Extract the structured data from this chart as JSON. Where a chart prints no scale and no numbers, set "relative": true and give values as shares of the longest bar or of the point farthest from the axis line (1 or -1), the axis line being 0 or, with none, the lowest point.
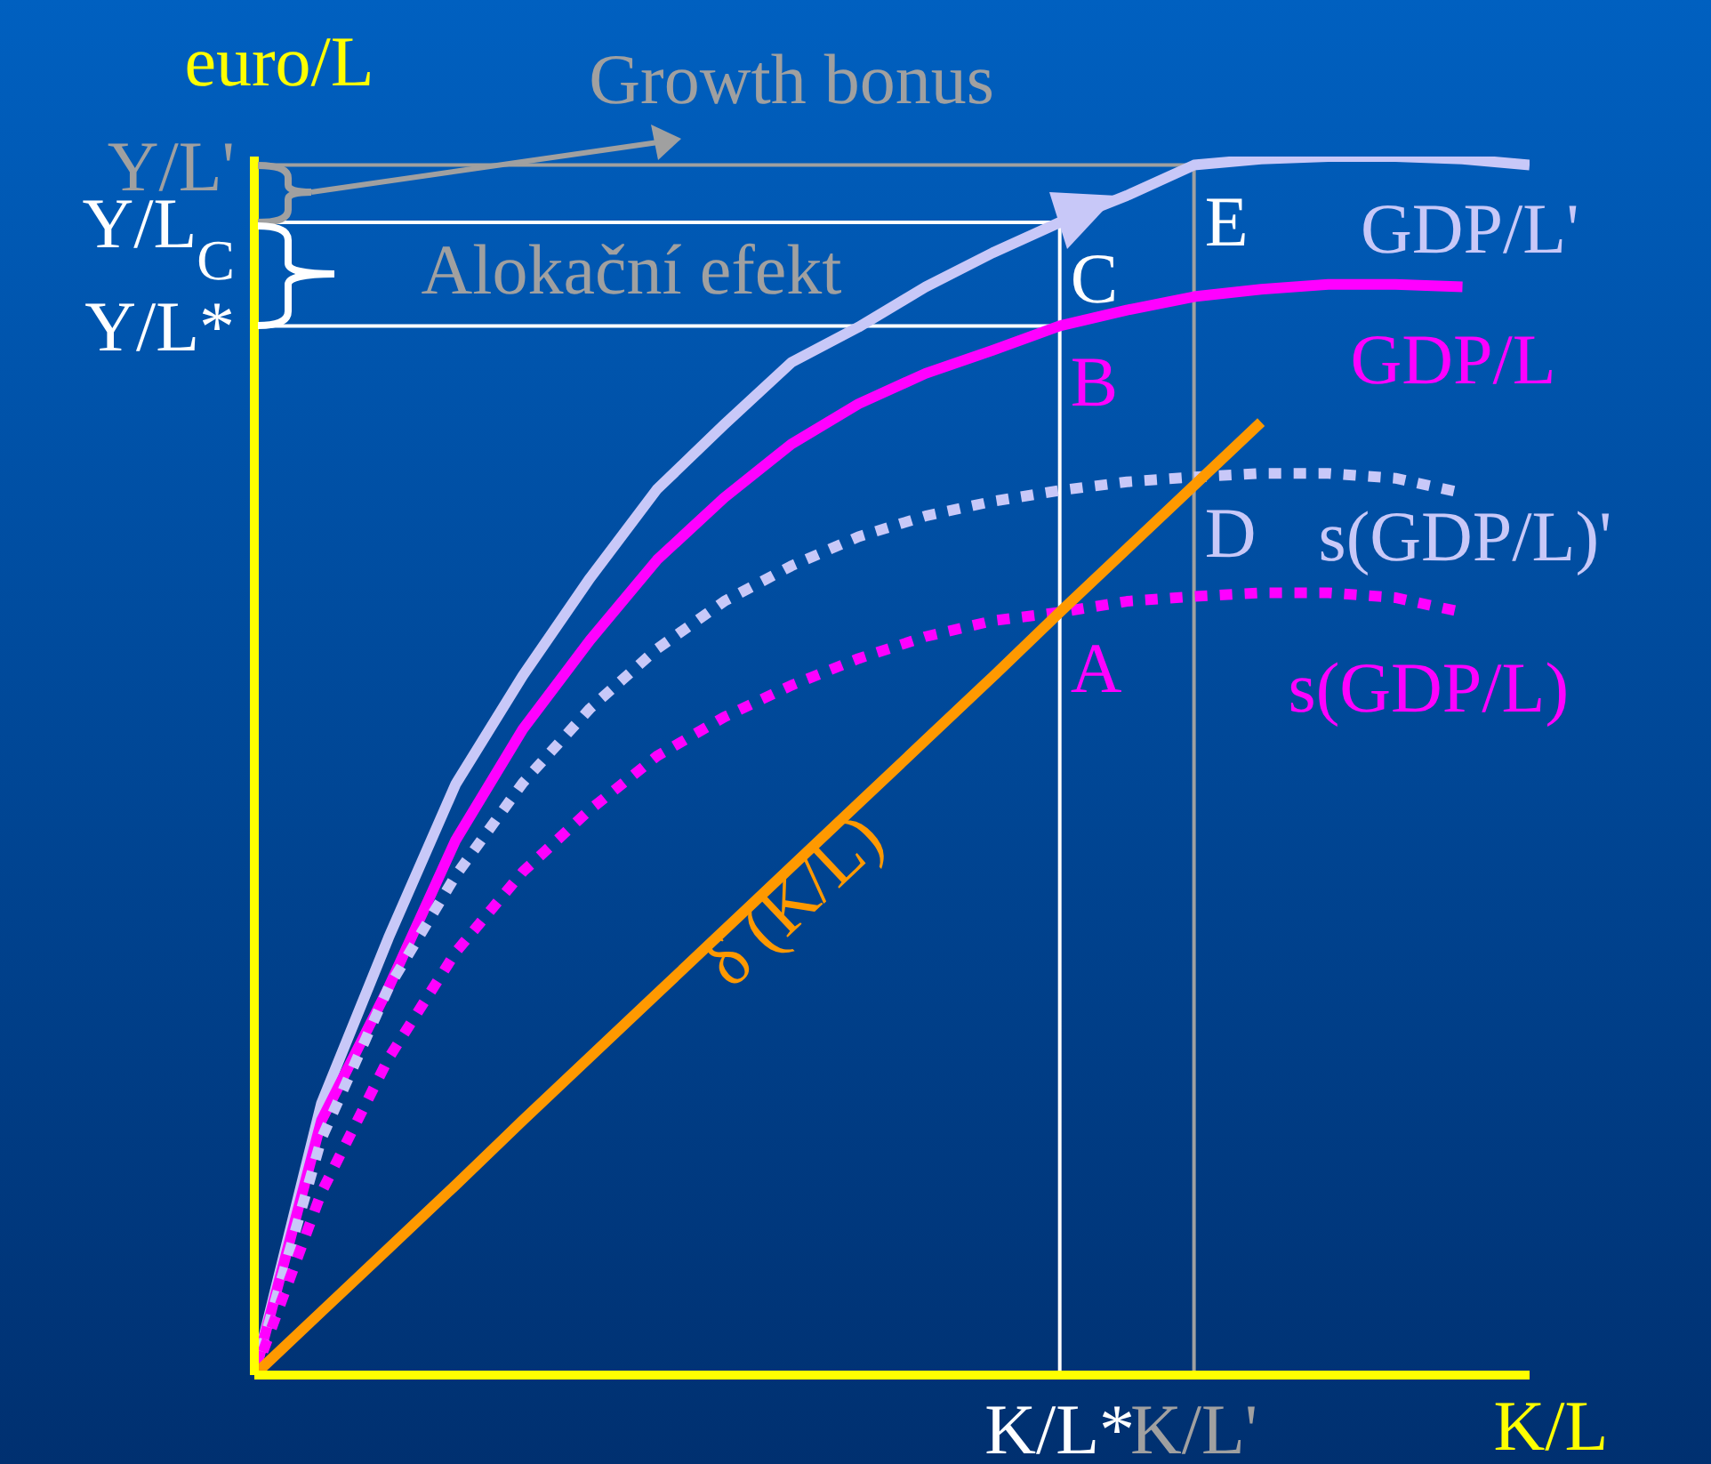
{
  "chart_data": {
    "type": "line",
    "relative": true,
    "xlabel": "K/L",
    "ylabel": "euro/L",
    "legend": false,
    "marker": "none",
    "categories": [
      null,
      null,
      null,
      null,
      null,
      null,
      null,
      null,
      null,
      null,
      null,
      null,
      "K/L*",
      null,
      "K/L'",
      null,
      null,
      null,
      null,
      null
    ],
    "series": [
      {
        "name": "GDP/L'",
        "color": "#c8c8f8",
        "line_style": "solid",
        "values": [
          0,
          0.223,
          0.359,
          0.485,
          0.574,
          0.654,
          0.727,
          0.78,
          0.831,
          0.86,
          0.893,
          0.921,
          0.946,
          0.968,
          0.993,
          0.998,
          1,
          1,
          0.998,
          0.993
        ]
      },
      {
        "name": "GDP/L",
        "color": "#ff00ff",
        "line_style": "solid",
        "values": [
          0,
          0.209,
          0.318,
          0.439,
          0.53,
          0.603,
          0.669,
          0.72,
          0.764,
          0.797,
          0.822,
          0.841,
          0.861,
          0.874,
          0.885,
          0.891,
          0.895,
          0.895,
          0.893,
          null
        ]
      },
      {
        "name": "s(GDP/L)'",
        "color": "#c8c8f8",
        "line_style": "dotted",
        "values": [
          0,
          0.194,
          0.318,
          0.41,
          0.486,
          0.547,
          0.596,
          0.635,
          0.664,
          0.688,
          0.705,
          0.717,
          0.726,
          0.733,
          0.737,
          0.74,
          0.74,
          0.736,
          0.724,
          null
        ]
      },
      {
        "name": "s(GDP/L)",
        "color": "#ff00ff",
        "line_style": "dotted",
        "values": [
          0,
          0.15,
          0.26,
          0.347,
          0.413,
          0.464,
          0.508,
          0.54,
          0.566,
          0.588,
          0.606,
          0.619,
          0.626,
          0.635,
          0.639,
          0.642,
          0.642,
          0.638,
          0.626,
          null
        ]
      },
      {
        "name": "δ (K/L)",
        "color": "#ff9900",
        "line_style": "solid",
        "values": [
          0,
          0.052,
          0.104,
          0.156,
          0.209,
          0.261,
          0.313,
          0.365,
          0.417,
          0.469,
          0.521,
          0.573,
          0.626,
          0.678,
          0.73,
          0.782,
          null,
          null,
          null,
          null
        ]
      }
    ],
    "ref_lines": [
      {
        "axis": "x",
        "value": "K/L*",
        "color": "#ffffff"
      },
      {
        "axis": "x",
        "value": "K/L'",
        "color": "#a0a0a0"
      },
      {
        "axis": "y",
        "value": 0.861,
        "label": "Y/L*",
        "color": "#ffffff"
      },
      {
        "axis": "y",
        "value": 0.946,
        "label": "Y/L$_{C}$",
        "color": "#ffffff"
      },
      {
        "axis": "y",
        "value": 0.993,
        "label": "Y/L'",
        "color": "#a0a0a0"
      }
    ],
    "annotations": [
      "Growth bonus",
      "Alokační efekt",
      {
        "text": "A",
        "x": "K/L*",
        "y": 0.626
      },
      {
        "text": "B",
        "x": "K/L*",
        "y": 0.861
      },
      {
        "text": "C",
        "x": "K/L*",
        "y": 0.946
      },
      {
        "text": "D",
        "x": "K/L'",
        "y": 0.737
      },
      {
        "text": "E",
        "x": "K/L'",
        "y": 0.993
      }
    ]
  }
}
